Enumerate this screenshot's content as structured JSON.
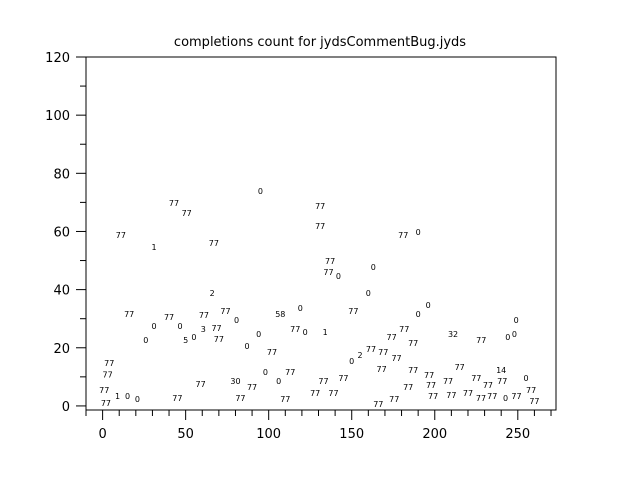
{
  "chart_data": {
    "type": "scatter",
    "title": "completions count for jydsCommentBug.jyds",
    "xlabel": "",
    "ylabel": "",
    "xlim": [
      -10,
      273
    ],
    "ylim": [
      -1.4,
      120
    ],
    "xticks": [
      0,
      50,
      100,
      150,
      200,
      250
    ],
    "yticks": [
      0,
      20,
      40,
      60,
      80,
      100,
      120
    ],
    "xminor_step": 10,
    "yminor_step": 10,
    "grid": false,
    "marker": "text label",
    "points": [
      {
        "x": 2,
        "y": 1,
        "label": "77"
      },
      {
        "x": 1,
        "y": 0,
        "label": "77"
      },
      {
        "x": 3,
        "y": 8,
        "label": "77"
      },
      {
        "x": 4,
        "y": 12,
        "label": "77"
      },
      {
        "x": 9,
        "y": 3.4,
        "label": "1"
      },
      {
        "x": 15,
        "y": 3.4,
        "label": "0"
      },
      {
        "x": 21,
        "y": 2.4,
        "label": "0"
      },
      {
        "x": 11,
        "y": 58.8,
        "label": "77"
      },
      {
        "x": 31,
        "y": 54.7,
        "label": "1"
      },
      {
        "x": 43,
        "y": 69.8,
        "label": "77"
      },
      {
        "x": 47,
        "y": 66.4,
        "label": "77"
      },
      {
        "x": 67,
        "y": 56,
        "label": "77"
      },
      {
        "x": 66,
        "y": 38.9,
        "label": "2"
      },
      {
        "x": 16,
        "y": 31.6,
        "label": "77"
      },
      {
        "x": 26,
        "y": 22.7,
        "label": "0"
      },
      {
        "x": 31,
        "y": 27.5,
        "label": "0"
      },
      {
        "x": 40,
        "y": 30.6,
        "label": "77"
      },
      {
        "x": 43,
        "y": 27.5,
        "label": "0"
      },
      {
        "x": 50,
        "y": 22.7,
        "label": "5"
      },
      {
        "x": 55,
        "y": 23.7,
        "label": "0"
      },
      {
        "x": 57,
        "y": 26.5,
        "label": "3"
      },
      {
        "x": 61,
        "y": 28.5,
        "label": "77"
      },
      {
        "x": 65,
        "y": 26.8,
        "label": "77"
      },
      {
        "x": 70,
        "y": 25.8,
        "label": "77"
      },
      {
        "x": 74,
        "y": 32.7,
        "label": "77"
      },
      {
        "x": 77,
        "y": 29.6,
        "label": "0"
      },
      {
        "x": 87,
        "y": 20.6,
        "label": "0"
      },
      {
        "x": 94,
        "y": 24.8,
        "label": "0"
      },
      {
        "x": 102,
        "y": 18.6,
        "label": "77"
      },
      {
        "x": 107,
        "y": 31.6,
        "label": "58"
      },
      {
        "x": 119,
        "y": 33.7,
        "label": "0"
      },
      {
        "x": 116,
        "y": 26.5,
        "label": "77"
      },
      {
        "x": 122,
        "y": 25.4,
        "label": "0"
      },
      {
        "x": 134,
        "y": 25.4,
        "label": "1"
      },
      {
        "x": 59,
        "y": 7.6,
        "label": "77"
      },
      {
        "x": 80,
        "y": 8.6,
        "label": "30"
      },
      {
        "x": 83,
        "y": 5.5,
        "label": "77"
      },
      {
        "x": 90,
        "y": 6.5,
        "label": "77"
      },
      {
        "x": 98,
        "y": 11.7,
        "label": "0"
      },
      {
        "x": 106,
        "y": 8.6,
        "label": "0"
      },
      {
        "x": 113,
        "y": 11.7,
        "label": "77"
      },
      {
        "x": 110,
        "y": 2.4,
        "label": "77"
      },
      {
        "x": 45,
        "y": 0,
        "label": "77"
      },
      {
        "x": 95,
        "y": 74,
        "label": "0"
      },
      {
        "x": 131,
        "y": 68.8,
        "label": "77"
      },
      {
        "x": 131,
        "y": 61.9,
        "label": "77"
      },
      {
        "x": 137,
        "y": 49.9,
        "label": "77"
      },
      {
        "x": 136,
        "y": 48.8,
        "label": "77"
      },
      {
        "x": 142,
        "y": 44.7,
        "label": "0"
      },
      {
        "x": 163,
        "y": 47.8,
        "label": "0"
      },
      {
        "x": 160,
        "y": 38.9,
        "label": "0"
      },
      {
        "x": 151,
        "y": 32.7,
        "label": "77"
      },
      {
        "x": 181,
        "y": 58.8,
        "label": "77"
      },
      {
        "x": 190,
        "y": 59.8,
        "label": "0"
      },
      {
        "x": 128,
        "y": 4.5,
        "label": "77"
      },
      {
        "x": 133,
        "y": 8.6,
        "label": "77"
      },
      {
        "x": 139,
        "y": 4.5,
        "label": "77"
      },
      {
        "x": 145,
        "y": 9.6,
        "label": "77"
      },
      {
        "x": 150,
        "y": 15.5,
        "label": "0"
      },
      {
        "x": 155,
        "y": 17.5,
        "label": "2"
      },
      {
        "x": 158,
        "y": 19.6,
        "label": "77"
      },
      {
        "x": 169,
        "y": 18.6,
        "label": "77"
      },
      {
        "x": 168,
        "y": 15.5,
        "label": "77"
      },
      {
        "x": 177,
        "y": 16.5,
        "label": "77"
      },
      {
        "x": 174,
        "y": 23.7,
        "label": "77"
      },
      {
        "x": 178,
        "y": 26.5,
        "label": "77"
      },
      {
        "x": 166,
        "y": 0.7,
        "label": "77"
      },
      {
        "x": 172,
        "y": 2.4,
        "label": "77"
      },
      {
        "x": 184,
        "y": 6.5,
        "label": "77"
      },
      {
        "x": 187,
        "y": 9.6,
        "label": "77"
      },
      {
        "x": 193,
        "y": 10.7,
        "label": "77"
      },
      {
        "x": 187,
        "y": 21.7,
        "label": "77"
      },
      {
        "x": 190,
        "y": 31.6,
        "label": "0"
      },
      {
        "x": 196,
        "y": 34.7,
        "label": "0"
      },
      {
        "x": 211,
        "y": 24.8,
        "label": "32"
      },
      {
        "x": 228,
        "y": 22.7,
        "label": "77"
      },
      {
        "x": 215,
        "y": 13.4,
        "label": "77"
      },
      {
        "x": 208,
        "y": 8.6,
        "label": "77"
      },
      {
        "x": 210,
        "y": 6.5,
        "label": "77"
      },
      {
        "x": 199,
        "y": 3.4,
        "label": "77"
      },
      {
        "x": 205,
        "y": 4.5,
        "label": "77"
      },
      {
        "x": 220,
        "y": 4.5,
        "label": "77"
      },
      {
        "x": 225,
        "y": 9.6,
        "label": "77"
      },
      {
        "x": 217,
        "y": 0,
        "label": "77"
      },
      {
        "x": 231,
        "y": 3.4,
        "label": "77"
      },
      {
        "x": 232,
        "y": 4.5,
        "label": "77"
      },
      {
        "x": 237,
        "y": 8.6,
        "label": "77"
      },
      {
        "x": 239,
        "y": 5.5,
        "label": "0"
      },
      {
        "x": 242,
        "y": 3.4,
        "label": "77"
      },
      {
        "x": 240,
        "y": 12.4,
        "label": "14"
      },
      {
        "x": 244,
        "y": 23.7,
        "label": "0"
      },
      {
        "x": 248,
        "y": 24.8,
        "label": "0"
      },
      {
        "x": 249,
        "y": 29.6,
        "label": "0"
      },
      {
        "x": 255,
        "y": 9.6,
        "label": "0"
      },
      {
        "x": 258,
        "y": 5.5,
        "label": "77"
      },
      {
        "x": 260,
        "y": 4.5,
        "label": "77"
      }
    ]
  }
}
